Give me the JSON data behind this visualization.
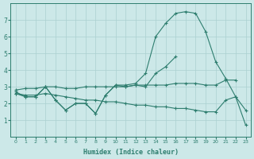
{
  "xlabel": "Humidex (Indice chaleur)",
  "x": [
    0,
    1,
    2,
    3,
    4,
    5,
    6,
    7,
    8,
    9,
    10,
    11,
    12,
    13,
    14,
    15,
    16,
    17,
    18,
    19,
    20,
    21,
    22,
    23
  ],
  "line_main": [
    2.7,
    2.4,
    2.4,
    3.0,
    2.2,
    1.6,
    2.0,
    2.0,
    1.4,
    2.5,
    3.1,
    3.1,
    3.2,
    3.8,
    6.0,
    6.8,
    7.4,
    7.5,
    7.4,
    6.3,
    4.5,
    3.5,
    2.4,
    1.6
  ],
  "line_short": [
    2.6,
    2.4,
    2.4,
    3.0,
    2.2,
    1.6,
    2.0,
    2.0,
    1.4,
    2.5,
    3.1,
    3.0,
    3.1,
    3.0,
    3.8,
    4.2,
    4.8,
    null,
    null,
    null,
    null,
    null,
    null,
    null
  ],
  "line_upper": [
    2.8,
    2.9,
    2.9,
    3.0,
    3.0,
    2.9,
    2.9,
    3.0,
    3.0,
    3.0,
    3.0,
    3.0,
    3.1,
    3.1,
    3.1,
    3.1,
    3.2,
    3.2,
    3.2,
    3.1,
    3.1,
    3.4,
    3.4,
    null
  ],
  "line_lower": [
    2.6,
    2.5,
    2.5,
    2.6,
    2.5,
    2.4,
    2.3,
    2.2,
    2.2,
    2.1,
    2.1,
    2.0,
    1.9,
    1.9,
    1.8,
    1.8,
    1.7,
    1.7,
    1.6,
    1.5,
    1.5,
    2.2,
    2.4,
    0.7
  ],
  "bg_color": "#cce8e8",
  "line_color": "#2d7d6e",
  "grid_color": "#aad0d0",
  "ylim": [
    0,
    8
  ],
  "xlim": [
    -0.5,
    23.5
  ],
  "yticks": [
    1,
    2,
    3,
    4,
    5,
    6,
    7
  ],
  "xticks": [
    0,
    1,
    2,
    3,
    4,
    5,
    6,
    7,
    8,
    9,
    10,
    11,
    12,
    13,
    14,
    15,
    16,
    17,
    18,
    19,
    20,
    21,
    22,
    23
  ]
}
